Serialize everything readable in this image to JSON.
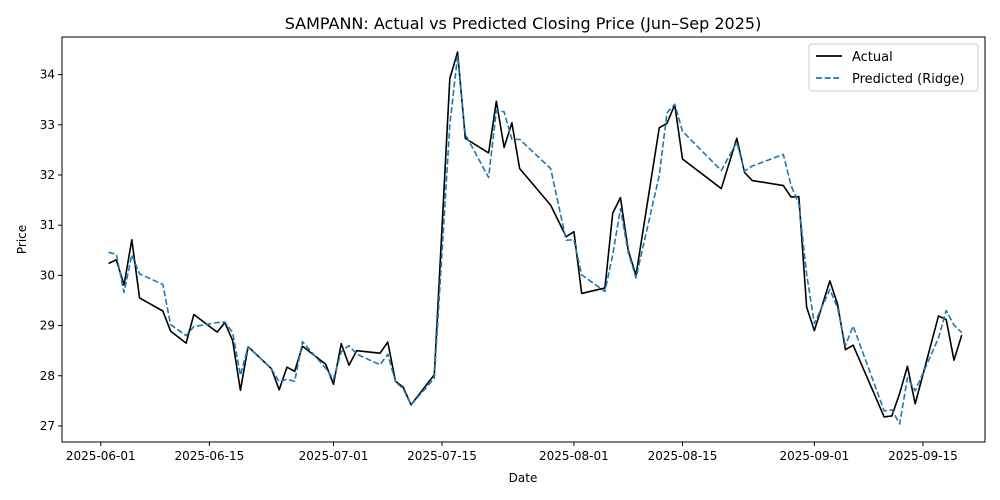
{
  "chart_data": {
    "type": "line",
    "title": "SAMPANN: Actual vs Predicted Closing Price (Jun–Sep 2025)",
    "xlabel": "Date",
    "ylabel": "Price",
    "xlim": [
      "2025-05-27",
      "2025-09-23"
    ],
    "ylim": [
      26.68,
      34.75
    ],
    "x_ticks": [
      "2025-06-01",
      "2025-06-15",
      "2025-07-01",
      "2025-07-15",
      "2025-08-01",
      "2025-08-15",
      "2025-09-01",
      "2025-09-15"
    ],
    "y_ticks": [
      27,
      28,
      29,
      30,
      31,
      32,
      33,
      34
    ],
    "legend_position": "top-right",
    "grid": false,
    "series": [
      {
        "name": "Actual",
        "color": "#000000",
        "style": "solid",
        "points": [
          [
            "2025-06-02",
            30.24
          ],
          [
            "2025-06-03",
            30.31
          ],
          [
            "2025-06-04",
            29.81
          ],
          [
            "2025-06-05",
            30.71
          ],
          [
            "2025-06-06",
            29.55
          ],
          [
            "2025-06-09",
            29.29
          ],
          [
            "2025-06-10",
            28.89
          ],
          [
            "2025-06-12",
            28.65
          ],
          [
            "2025-06-13",
            29.22
          ],
          [
            "2025-06-16",
            28.87
          ],
          [
            "2025-06-17",
            29.06
          ],
          [
            "2025-06-18",
            28.7
          ],
          [
            "2025-06-19",
            27.71
          ],
          [
            "2025-06-20",
            28.58
          ],
          [
            "2025-06-23",
            28.14
          ],
          [
            "2025-06-24",
            27.72
          ],
          [
            "2025-06-25",
            28.17
          ],
          [
            "2025-06-26",
            28.09
          ],
          [
            "2025-06-27",
            28.59
          ],
          [
            "2025-06-30",
            28.23
          ],
          [
            "2025-07-01",
            27.83
          ],
          [
            "2025-07-02",
            28.64
          ],
          [
            "2025-07-03",
            28.21
          ],
          [
            "2025-07-04",
            28.5
          ],
          [
            "2025-07-07",
            28.45
          ],
          [
            "2025-07-08",
            28.67
          ],
          [
            "2025-07-09",
            27.89
          ],
          [
            "2025-07-10",
            27.77
          ],
          [
            "2025-07-11",
            27.42
          ],
          [
            "2025-07-14",
            28.02
          ],
          [
            "2025-07-16",
            33.92
          ],
          [
            "2025-07-17",
            34.45
          ],
          [
            "2025-07-18",
            32.73
          ],
          [
            "2025-07-21",
            32.44
          ],
          [
            "2025-07-22",
            33.47
          ],
          [
            "2025-07-23",
            32.55
          ],
          [
            "2025-07-24",
            33.04
          ],
          [
            "2025-07-25",
            32.13
          ],
          [
            "2025-07-29",
            31.4
          ],
          [
            "2025-07-31",
            30.77
          ],
          [
            "2025-08-01",
            30.87
          ],
          [
            "2025-08-02",
            29.64
          ],
          [
            "2025-08-05",
            29.75
          ],
          [
            "2025-08-06",
            31.24
          ],
          [
            "2025-08-07",
            31.55
          ],
          [
            "2025-08-08",
            30.5
          ],
          [
            "2025-08-09",
            30.0
          ],
          [
            "2025-08-12",
            32.94
          ],
          [
            "2025-08-13",
            33.03
          ],
          [
            "2025-08-14",
            33.4
          ],
          [
            "2025-08-15",
            32.32
          ],
          [
            "2025-08-20",
            31.73
          ],
          [
            "2025-08-22",
            32.73
          ],
          [
            "2025-08-23",
            32.05
          ],
          [
            "2025-08-24",
            31.89
          ],
          [
            "2025-08-28",
            31.79
          ],
          [
            "2025-08-29",
            31.56
          ],
          [
            "2025-08-30",
            31.57
          ],
          [
            "2025-08-31",
            29.37
          ],
          [
            "2025-09-01",
            28.9
          ],
          [
            "2025-09-03",
            29.89
          ],
          [
            "2025-09-04",
            29.42
          ],
          [
            "2025-09-05",
            28.52
          ],
          [
            "2025-09-06",
            28.61
          ],
          [
            "2025-09-10",
            27.18
          ],
          [
            "2025-09-11",
            27.2
          ],
          [
            "2025-09-12",
            27.65
          ],
          [
            "2025-09-13",
            28.19
          ],
          [
            "2025-09-14",
            27.44
          ],
          [
            "2025-09-17",
            29.19
          ],
          [
            "2025-09-18",
            29.12
          ],
          [
            "2025-09-19",
            28.31
          ],
          [
            "2025-09-20",
            28.81
          ]
        ]
      },
      {
        "name": "Predicted (Ridge)",
        "color": "#1f77b4",
        "style": "dashed",
        "points": [
          [
            "2025-06-02",
            30.46
          ],
          [
            "2025-06-03",
            30.42
          ],
          [
            "2025-06-04",
            29.66
          ],
          [
            "2025-06-05",
            30.41
          ],
          [
            "2025-06-06",
            30.03
          ],
          [
            "2025-06-09",
            29.82
          ],
          [
            "2025-06-10",
            29.02
          ],
          [
            "2025-06-12",
            28.8
          ],
          [
            "2025-06-13",
            28.98
          ],
          [
            "2025-06-16",
            29.06
          ],
          [
            "2025-06-17",
            29.07
          ],
          [
            "2025-06-18",
            28.86
          ],
          [
            "2025-06-19",
            28.01
          ],
          [
            "2025-06-20",
            28.58
          ],
          [
            "2025-06-23",
            28.14
          ],
          [
            "2025-06-24",
            27.88
          ],
          [
            "2025-06-25",
            27.93
          ],
          [
            "2025-06-26",
            27.89
          ],
          [
            "2025-06-27",
            28.68
          ],
          [
            "2025-06-30",
            28.15
          ],
          [
            "2025-07-01",
            27.93
          ],
          [
            "2025-07-02",
            28.48
          ],
          [
            "2025-07-03",
            28.6
          ],
          [
            "2025-07-04",
            28.43
          ],
          [
            "2025-07-07",
            28.22
          ],
          [
            "2025-07-08",
            28.43
          ],
          [
            "2025-07-09",
            27.88
          ],
          [
            "2025-07-10",
            27.74
          ],
          [
            "2025-07-11",
            27.42
          ],
          [
            "2025-07-14",
            27.95
          ],
          [
            "2025-07-16",
            33.0
          ],
          [
            "2025-07-17",
            34.37
          ],
          [
            "2025-07-18",
            32.81
          ],
          [
            "2025-07-21",
            31.95
          ],
          [
            "2025-07-22",
            33.29
          ],
          [
            "2025-07-23",
            33.26
          ],
          [
            "2025-07-24",
            32.71
          ],
          [
            "2025-07-25",
            32.71
          ],
          [
            "2025-07-29",
            32.13
          ],
          [
            "2025-07-31",
            30.7
          ],
          [
            "2025-08-01",
            30.71
          ],
          [
            "2025-08-02",
            30.01
          ],
          [
            "2025-08-05",
            29.68
          ],
          [
            "2025-08-06",
            30.41
          ],
          [
            "2025-08-07",
            31.33
          ],
          [
            "2025-08-08",
            30.46
          ],
          [
            "2025-08-09",
            29.95
          ],
          [
            "2025-08-12",
            31.99
          ],
          [
            "2025-08-13",
            33.24
          ],
          [
            "2025-08-14",
            33.41
          ],
          [
            "2025-08-15",
            32.87
          ],
          [
            "2025-08-20",
            32.09
          ],
          [
            "2025-08-22",
            32.65
          ],
          [
            "2025-08-23",
            32.08
          ],
          [
            "2025-08-24",
            32.18
          ],
          [
            "2025-08-28",
            32.41
          ],
          [
            "2025-08-29",
            31.79
          ],
          [
            "2025-08-30",
            31.42
          ],
          [
            "2025-08-31",
            30.03
          ],
          [
            "2025-09-01",
            29.04
          ],
          [
            "2025-09-03",
            29.72
          ],
          [
            "2025-09-04",
            29.35
          ],
          [
            "2025-09-05",
            28.6
          ],
          [
            "2025-09-06",
            28.99
          ],
          [
            "2025-09-10",
            27.3
          ],
          [
            "2025-09-11",
            27.32
          ],
          [
            "2025-09-12",
            27.04
          ],
          [
            "2025-09-13",
            27.96
          ],
          [
            "2025-09-14",
            27.7
          ],
          [
            "2025-09-17",
            28.75
          ],
          [
            "2025-09-18",
            29.3
          ],
          [
            "2025-09-19",
            29.01
          ],
          [
            "2025-09-20",
            28.86
          ]
        ]
      }
    ]
  }
}
